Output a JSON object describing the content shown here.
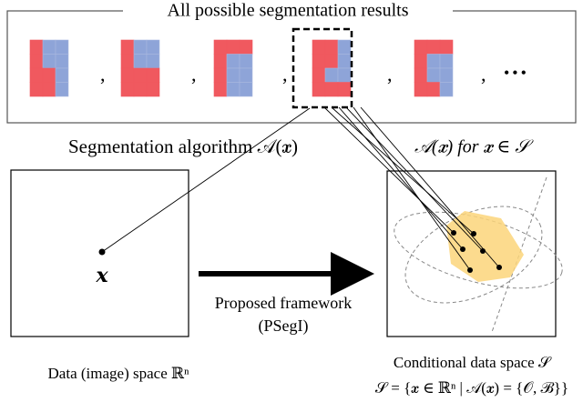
{
  "header": {
    "title": "All possible segmentation results",
    "separator": ",",
    "ellipsis": "•••"
  },
  "labels": {
    "algorithm": "Segmentation algorithm 𝒜(𝒙)",
    "condition": "𝒜(𝒙) for 𝒙 ∈ 𝒮",
    "point": "𝒙",
    "framework": "Proposed framework",
    "framework_short": "(PSegI)",
    "data_space": "Data (image) space ℝⁿ",
    "conditional_space": "Conditional data space 𝒮",
    "definition": "𝒮 = {𝒙 ∈ ℝⁿ | 𝒜(𝒙) = {𝒪, ℬ}}"
  }
}
